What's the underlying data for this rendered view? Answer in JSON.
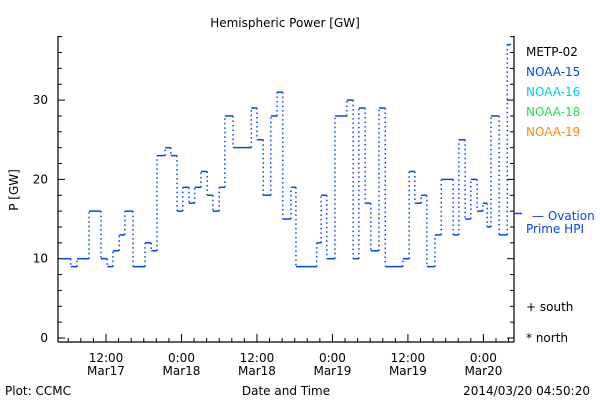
{
  "chart_data": {
    "type": "line",
    "style": "step",
    "title": "Hemispheric Power [GW]",
    "ylabel": "P [GW]",
    "xlabel": "Date and Time",
    "ylim": [
      0,
      38
    ],
    "yticks": [
      0,
      10,
      20,
      30
    ],
    "x_units": "hours since 2014-03-17 00:00",
    "xlim": [
      4.8,
      76.8
    ],
    "xticks": [
      {
        "hour": 12,
        "line1": "12:00",
        "line2": "Mar17"
      },
      {
        "hour": 24,
        "line1": "0:00",
        "line2": "Mar18"
      },
      {
        "hour": 36,
        "line1": "12:00",
        "line2": "Mar18"
      },
      {
        "hour": 48,
        "line1": "0:00",
        "line2": "Mar19"
      },
      {
        "hour": 60,
        "line1": "12:00",
        "line2": "Mar19"
      },
      {
        "hour": 72,
        "line1": "0:00",
        "line2": "Mar20"
      }
    ],
    "legend": [
      {
        "label": "METP-02",
        "color": "#000000"
      },
      {
        "label": "NOAA-15",
        "color": "#0044ff"
      },
      {
        "label": "NOAA-16",
        "color": "#00c8ff"
      },
      {
        "label": "NOAA-18",
        "color": "#22dd55"
      },
      {
        "label": "NOAA-19",
        "color": "#ff8800"
      }
    ],
    "series": [
      {
        "name": "NOAA-15",
        "color": "#0044ff",
        "x": [
          4.8,
          6.4,
          7.4,
          9.3,
          11.2,
          12.2,
          13.1,
          14.1,
          15.0,
          16.3,
          18.2,
          19.2,
          20.1,
          21.4,
          22.3,
          23.3,
          24.2,
          25.2,
          26.1,
          27.1,
          28.1,
          29.0,
          30.0,
          30.9,
          32.2,
          35.1,
          36.0,
          37.0,
          38.2,
          39.2,
          40.1,
          41.4,
          42.2,
          45.5,
          46.2,
          47.1,
          48.4,
          50.3,
          51.3,
          52.2,
          53.2,
          54.1,
          55.4,
          56.4,
          59.2,
          60.2,
          61.1,
          62.1,
          63.0,
          64.3,
          65.3,
          67.2,
          68.1,
          69.1,
          70.0,
          71.0,
          71.9,
          72.6,
          73.2,
          74.5,
          75.8
        ],
        "values": [
          10,
          9,
          10,
          16,
          10,
          9,
          11,
          13,
          16,
          9,
          12,
          11,
          23,
          24,
          23,
          16,
          19,
          17,
          19,
          21,
          18,
          16,
          19,
          28,
          24,
          29,
          25,
          18,
          28,
          31,
          15,
          19,
          9,
          12,
          18,
          10,
          28,
          30,
          10,
          29,
          17,
          11,
          29,
          9,
          10,
          21,
          17,
          18,
          9,
          13,
          20,
          13,
          25,
          15,
          20,
          16,
          17,
          14,
          28,
          13,
          37
        ],
        "end": 76.4
      }
    ],
    "reference": {
      "label_line1": "— Ovation",
      "label_line2": "Prime HPI",
      "value": 15.7,
      "color": "#0044ff"
    },
    "hemisphere_legend": [
      {
        "symbol": "+",
        "label": "south"
      },
      {
        "symbol": "*",
        "label": "north"
      }
    ],
    "footer_left": "Plot: CCMC",
    "footer_right": "2014/03/20 04:50:20"
  }
}
